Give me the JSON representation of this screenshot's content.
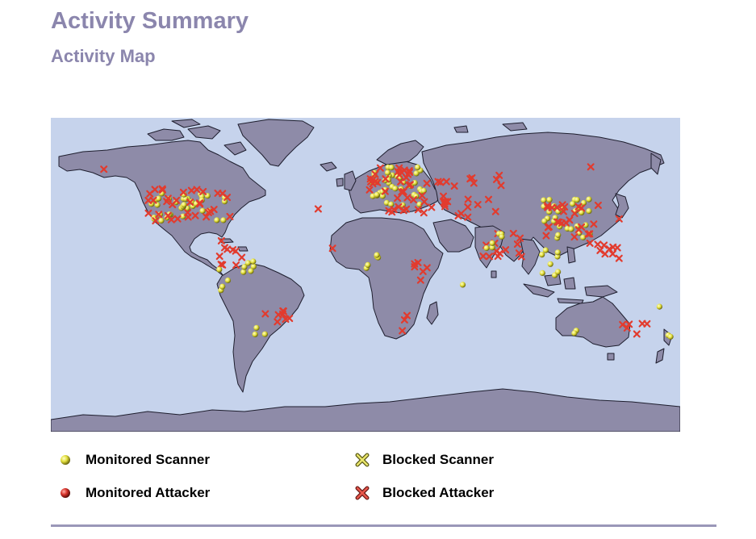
{
  "header": {
    "title": "Activity Summary",
    "subtitle": "Activity Map"
  },
  "map": {
    "ocean_color": "#c6d3ec",
    "land_color": "#8e8ba8",
    "scanner_color": "#e3df3c",
    "blocked_color": "#e23b2e"
  },
  "legend": {
    "items": [
      {
        "label": "Monitored Scanner",
        "icon": "yellow-sphere-icon"
      },
      {
        "label": "Blocked Scanner",
        "icon": "yellow-x-icon"
      },
      {
        "label": "Monitored Attacker",
        "icon": "red-sphere-icon"
      },
      {
        "label": "Blocked Attacker",
        "icon": "red-x-icon"
      }
    ]
  }
}
